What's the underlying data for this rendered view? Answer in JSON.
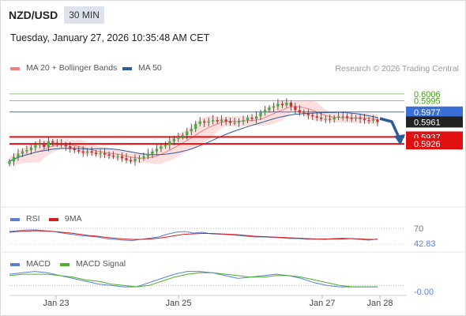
{
  "header": {
    "pair": "NZD/USD",
    "timeframe": "30 MIN",
    "datetime": "Tuesday, January 27, 2026 10:35:48 AM CET"
  },
  "credit": "Research © 2026 Trading Central",
  "colors": {
    "ma20": "#f08080",
    "ma50": "#2e5c9a",
    "bollinger_fill": "#fbd9d9",
    "resistance": "#9ac27a",
    "pivot": "#3a6fd8",
    "support": "#e01010",
    "price_tag": "#222222",
    "candle_up": "#3cb043",
    "candle_down": "#d52b2b",
    "rsi": "#5b7fd6",
    "rsi_ma": "#d41c1c",
    "macd": "#5b7fd6",
    "macd_signal": "#4caf2a",
    "forecast_arrow": "#2e5c9a"
  },
  "chart_data": [
    {
      "type": "candlestick",
      "legend": [
        {
          "label": "MA 20 + Bollinger Bands",
          "color": "#f08080"
        },
        {
          "label": "MA 50",
          "color": "#2e5c9a"
        }
      ],
      "ylim": [
        0.583,
        0.6045
      ],
      "x_ticks": [
        "Jan 23",
        "Jan 25",
        "Jan 27",
        "Jan 28"
      ],
      "levels": [
        {
          "label": "0.6006",
          "value": 0.6006,
          "kind": "resistance"
        },
        {
          "label": "0.5995",
          "value": 0.5995,
          "kind": "resistance"
        },
        {
          "label": "0.5977",
          "value": 0.5977,
          "kind": "pivot"
        },
        {
          "label": "0.5937",
          "value": 0.5937,
          "kind": "support"
        },
        {
          "label": "0.5926",
          "value": 0.5926,
          "kind": "support"
        }
      ],
      "last_price": {
        "label": "0.5961",
        "value": 0.5961
      },
      "close": [
        0.5898,
        0.5905,
        0.591,
        0.5914,
        0.5916,
        0.592,
        0.5924,
        0.5926,
        0.5921,
        0.593,
        0.5928,
        0.5926,
        0.5924,
        0.5922,
        0.5918,
        0.5916,
        0.5914,
        0.5912,
        0.5914,
        0.5912,
        0.591,
        0.5911,
        0.5909,
        0.5907,
        0.5906,
        0.5906,
        0.5903,
        0.59,
        0.5898,
        0.5902,
        0.5904,
        0.5906,
        0.591,
        0.5914,
        0.5918,
        0.5922,
        0.5924,
        0.593,
        0.5934,
        0.5937,
        0.594,
        0.5946,
        0.595,
        0.5958,
        0.5962,
        0.596,
        0.5962,
        0.5964,
        0.5962,
        0.5965,
        0.5962,
        0.596,
        0.596,
        0.5962,
        0.5964,
        0.5968,
        0.5966,
        0.597,
        0.5976,
        0.598,
        0.5984,
        0.5986,
        0.599,
        0.5988,
        0.5992,
        0.5986,
        0.598,
        0.5976,
        0.5974,
        0.5972,
        0.597,
        0.5968,
        0.5966,
        0.5966,
        0.5965,
        0.5968,
        0.597,
        0.597,
        0.5968,
        0.5966,
        0.5968,
        0.5966,
        0.5964,
        0.5963,
        0.5965,
        0.5961
      ]
    },
    {
      "type": "line",
      "legend": [
        {
          "label": "RSI",
          "color": "#5b7fd6"
        },
        {
          "label": "9MA",
          "color": "#d41c1c"
        }
      ],
      "ylim": [
        20,
        80
      ],
      "reference_levels": [
        70
      ],
      "last_value_label": "42.83",
      "series": [
        {
          "name": "RSI",
          "values": [
            62,
            64,
            66,
            66,
            64,
            62,
            58,
            55,
            52,
            50,
            48,
            44,
            42,
            40,
            39,
            42,
            45,
            48,
            55,
            60,
            62,
            58,
            60,
            56,
            55,
            54,
            52,
            50,
            48,
            48,
            47,
            46,
            44,
            44,
            42,
            43,
            42,
            44,
            45,
            44,
            42,
            40,
            43
          ]
        },
        {
          "name": "9MA",
          "values": [
            60,
            62,
            63,
            64,
            63,
            62,
            60,
            58,
            55,
            52,
            50,
            47,
            45,
            43,
            42,
            42,
            43,
            45,
            48,
            52,
            55,
            56,
            57,
            57,
            56,
            55,
            54,
            52,
            50,
            49,
            48,
            47,
            46,
            45,
            44,
            43,
            43,
            43,
            43,
            44,
            43,
            42,
            42
          ]
        }
      ]
    },
    {
      "type": "line",
      "legend": [
        {
          "label": "MACD",
          "color": "#5b7fd6"
        },
        {
          "label": "MACD Signal",
          "color": "#4caf2a"
        }
      ],
      "ylim": [
        -0.0006,
        0.0012
      ],
      "reference_levels": [
        0
      ],
      "last_value_label": "-0.00",
      "series": [
        {
          "name": "MACD",
          "values": [
            0.0008,
            0.0009,
            0.001,
            0.0009,
            0.0007,
            0.0005,
            0.0003,
            0.0001,
            0.0,
            -0.0001,
            -0.0001,
            0.0002,
            0.0005,
            0.0008,
            0.001,
            0.001,
            0.0009,
            0.0007,
            0.0005,
            0.0006,
            0.0007,
            0.0008,
            0.0007,
            0.0005,
            0.0002,
            0.0,
            -0.0001,
            -0.0001,
            -0.0001,
            -0.0001
          ]
        },
        {
          "name": "MACD Signal",
          "values": [
            0.0007,
            0.0008,
            0.0008,
            0.0008,
            0.0007,
            0.0006,
            0.0004,
            0.0003,
            0.0001,
            0.0,
            -0.0001,
            0.0,
            0.0003,
            0.0006,
            0.0008,
            0.0009,
            0.0009,
            0.0008,
            0.0007,
            0.0006,
            0.0006,
            0.0007,
            0.0007,
            0.0006,
            0.0004,
            0.0002,
            0.0,
            -0.0001,
            -0.0001,
            -0.0001
          ]
        }
      ]
    }
  ]
}
